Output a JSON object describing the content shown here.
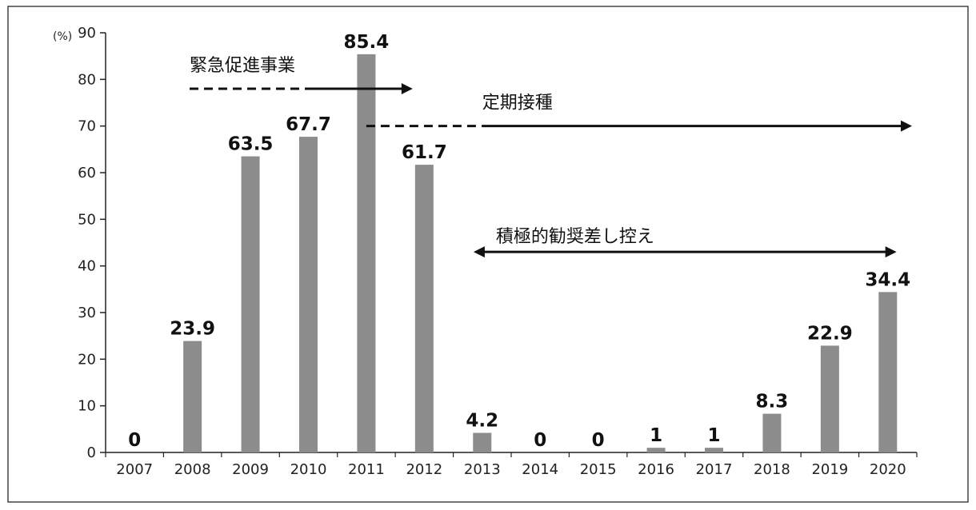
{
  "chart_data": {
    "type": "bar",
    "ylabel": "(%)",
    "ylim": [
      0,
      90
    ],
    "yticks": [
      0,
      10,
      20,
      30,
      40,
      50,
      60,
      70,
      80,
      90
    ],
    "categories": [
      "2007",
      "2008",
      "2009",
      "2010",
      "2011",
      "2012",
      "2013",
      "2014",
      "2015",
      "2016",
      "2017",
      "2018",
      "2019",
      "2020"
    ],
    "values": [
      0,
      23.9,
      63.5,
      67.7,
      85.4,
      61.7,
      4.2,
      0,
      0,
      1,
      1,
      8.3,
      22.9,
      34.4
    ],
    "data_labels": [
      "0",
      "23.9",
      "63.5",
      "67.7",
      "85.4",
      "61.7",
      "4.2",
      "0",
      "0",
      "1",
      "1",
      "8.3",
      "22.9",
      "34.4"
    ],
    "bar_color": "#8c8c8c",
    "annotations": [
      {
        "id": "kinkyu",
        "label": "緊急促進事業",
        "style": "dashed-then-solid",
        "from": "2008",
        "to": "2012",
        "level": 78
      },
      {
        "id": "teiki",
        "label": "定期接種",
        "style": "dashed-then-solid",
        "from": "2011",
        "to": "2020",
        "level": 70
      },
      {
        "id": "sashihikae",
        "label": "積極的勧奨差し控え",
        "style": "double-arrow",
        "from": "2013",
        "to": "2020",
        "level": 43
      }
    ]
  }
}
